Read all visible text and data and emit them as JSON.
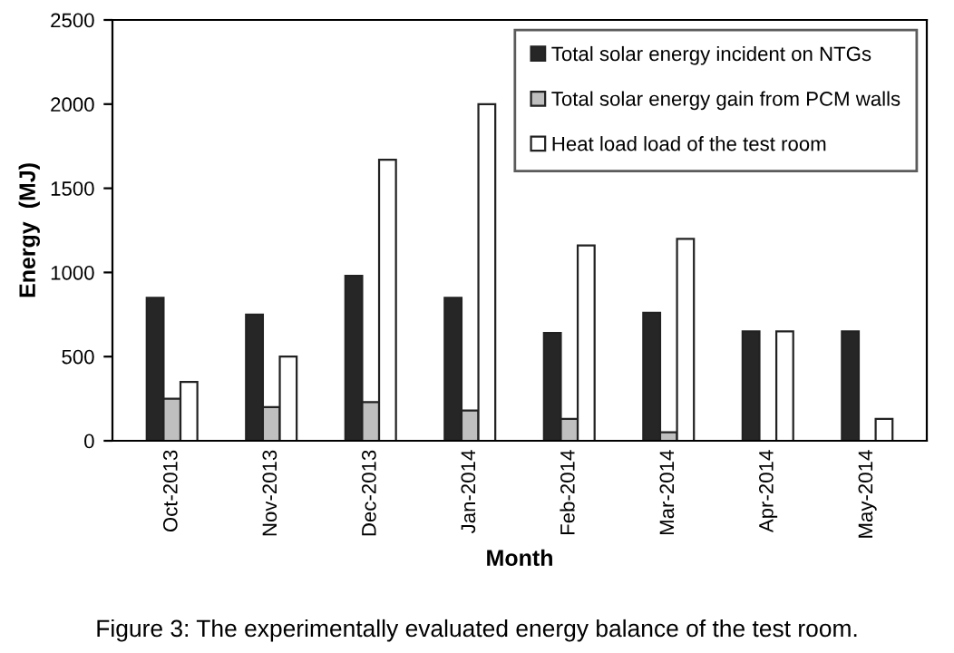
{
  "chart_data": {
    "type": "bar",
    "xlabel": "Month",
    "ylabel": "Energy  (MJ)",
    "categories": [
      "Oct-2013",
      "Nov-2013",
      "Dec-2013",
      "Jan-2014",
      "Feb-2014",
      "Mar-2014",
      "Apr-2014",
      "May-2014"
    ],
    "series": [
      {
        "name": "Total solar energy incident on NTGs",
        "color": "#262626",
        "values": [
          850,
          750,
          980,
          850,
          640,
          760,
          650,
          650
        ]
      },
      {
        "name": "Total solar energy gain from PCM walls",
        "color": "#bfbfbf",
        "values": [
          250,
          200,
          230,
          180,
          130,
          50,
          null,
          null
        ]
      },
      {
        "name": "Heat load load of the test room",
        "color": "#ffffff",
        "values": [
          350,
          500,
          1670,
          2000,
          1160,
          1200,
          650,
          130
        ]
      }
    ],
    "ylim": [
      0,
      2500
    ],
    "yticks": [
      0,
      500,
      1000,
      1500,
      2000,
      2500
    ],
    "grid": false,
    "legend": "top right",
    "annotations": [
      "Figure 3: The experimentally evaluated energy balance of the test room."
    ]
  }
}
